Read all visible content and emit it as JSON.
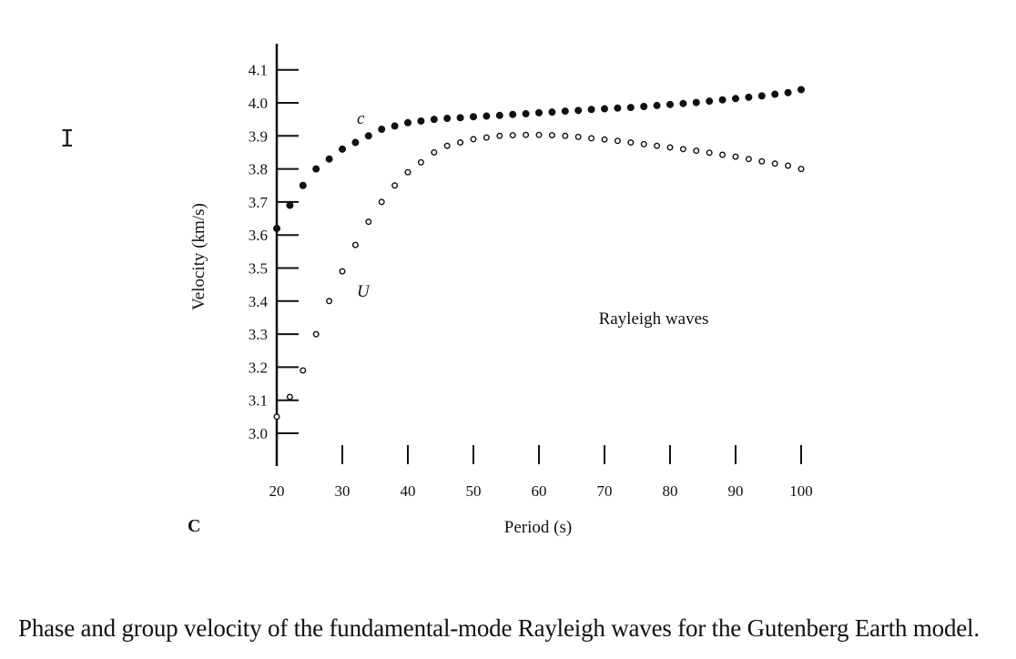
{
  "caption": "Phase and group velocity of the fundamental-mode Rayleigh waves for the Gutenberg Earth model.",
  "panel_letter": "C",
  "cursor_glyph": "I",
  "chart_data": {
    "type": "scatter",
    "title": "",
    "xlabel": "Period (s)",
    "ylabel": "Velocity (km/s)",
    "annotation": "Rayleigh waves",
    "xlim": [
      20,
      100
    ],
    "ylim": [
      2.9,
      4.15
    ],
    "x_ticks": [
      20,
      30,
      40,
      50,
      60,
      70,
      80,
      90,
      100
    ],
    "x_tick_labels": [
      "20",
      "30",
      "40",
      "50",
      "60",
      "70",
      "80",
      "90",
      "100"
    ],
    "y_ticks": [
      3.0,
      3.1,
      3.2,
      3.3,
      3.4,
      3.5,
      3.6,
      3.7,
      3.8,
      3.9,
      4.0,
      4.1
    ],
    "y_tick_labels": [
      "3.0",
      "3.1",
      "3.2",
      "3.3",
      "3.4",
      "3.5",
      "3.6",
      "3.7",
      "3.8",
      "3.9",
      "4.0",
      "4.1"
    ],
    "grid": false,
    "series": [
      {
        "name": "c",
        "marker": "filled-circle",
        "x": [
          20,
          22,
          24,
          26,
          28,
          30,
          32,
          34,
          36,
          38,
          40,
          42,
          44,
          46,
          48,
          50,
          52,
          54,
          56,
          58,
          60,
          62,
          64,
          66,
          68,
          70,
          72,
          74,
          76,
          78,
          80,
          82,
          84,
          86,
          88,
          90,
          92,
          94,
          96,
          98,
          100
        ],
        "y": [
          3.62,
          3.69,
          3.75,
          3.8,
          3.83,
          3.86,
          3.88,
          3.9,
          3.92,
          3.93,
          3.94,
          3.945,
          3.95,
          3.953,
          3.955,
          3.958,
          3.96,
          3.962,
          3.965,
          3.967,
          3.97,
          3.972,
          3.975,
          3.977,
          3.98,
          3.982,
          3.984,
          3.986,
          3.989,
          3.992,
          3.995,
          3.998,
          4.001,
          4.005,
          4.009,
          4.013,
          4.017,
          4.021,
          4.026,
          4.031,
          4.04
        ]
      },
      {
        "name": "U",
        "marker": "open-circle",
        "x": [
          20,
          22,
          24,
          26,
          28,
          30,
          32,
          34,
          36,
          38,
          40,
          42,
          44,
          46,
          48,
          50,
          52,
          54,
          56,
          58,
          60,
          62,
          64,
          66,
          68,
          70,
          72,
          74,
          76,
          78,
          80,
          82,
          84,
          86,
          88,
          90,
          92,
          94,
          96,
          98,
          100
        ],
        "y": [
          3.05,
          3.11,
          3.19,
          3.3,
          3.4,
          3.49,
          3.57,
          3.64,
          3.7,
          3.75,
          3.79,
          3.82,
          3.85,
          3.87,
          3.88,
          3.89,
          3.895,
          3.9,
          3.902,
          3.903,
          3.903,
          3.902,
          3.9,
          3.897,
          3.893,
          3.889,
          3.885,
          3.88,
          3.875,
          3.87,
          3.865,
          3.86,
          3.855,
          3.849,
          3.843,
          3.837,
          3.83,
          3.823,
          3.816,
          3.81,
          3.8
        ]
      }
    ]
  }
}
